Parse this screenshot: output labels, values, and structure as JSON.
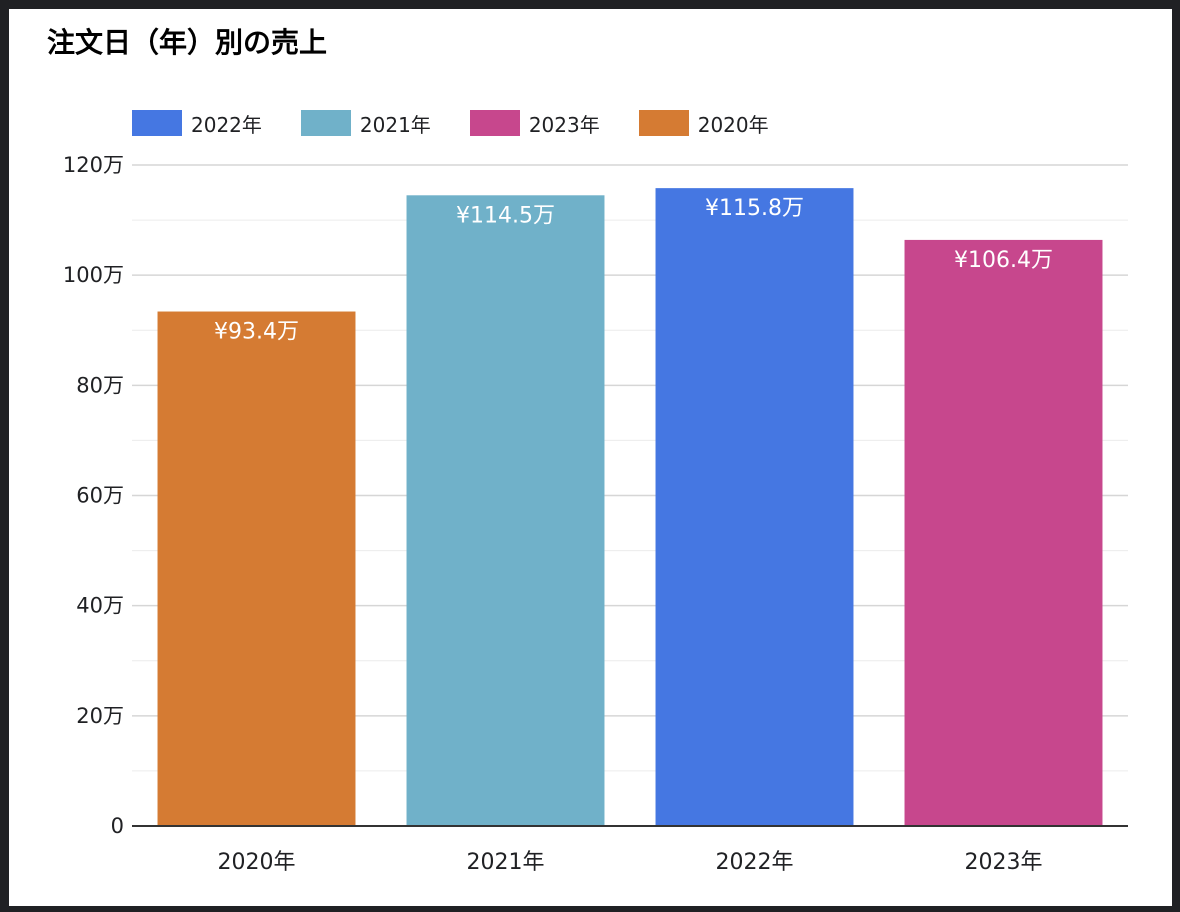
{
  "chart_data": {
    "type": "bar",
    "title": "注文日（年）別の売上",
    "xlabel": "",
    "ylabel": "",
    "categories": [
      "2020年",
      "2021年",
      "2022年",
      "2023年"
    ],
    "values": [
      934000,
      1145000,
      1158000,
      1064000
    ],
    "data_labels": [
      "¥93.4万",
      "¥114.5万",
      "¥115.8万",
      "¥106.4万"
    ],
    "bar_colors": [
      "#d57b33",
      "#70b1c9",
      "#4577e2",
      "#c7478d"
    ],
    "ylim": [
      0,
      1200000
    ],
    "y_ticks": [
      {
        "value": 0,
        "label": "0"
      },
      {
        "value": 200000,
        "label": "20万"
      },
      {
        "value": 400000,
        "label": "40万"
      },
      {
        "value": 600000,
        "label": "60万"
      },
      {
        "value": 800000,
        "label": "80万"
      },
      {
        "value": 1000000,
        "label": "100万"
      },
      {
        "value": 1200000,
        "label": "120万"
      }
    ],
    "minor_gridlines": true,
    "grid": true,
    "legend_position": "top-left",
    "legend": [
      {
        "label": "2022年",
        "color": "#4577e2"
      },
      {
        "label": "2021年",
        "color": "#70b1c9"
      },
      {
        "label": "2023年",
        "color": "#c7478d"
      },
      {
        "label": "2020年",
        "color": "#d57b33"
      }
    ]
  }
}
